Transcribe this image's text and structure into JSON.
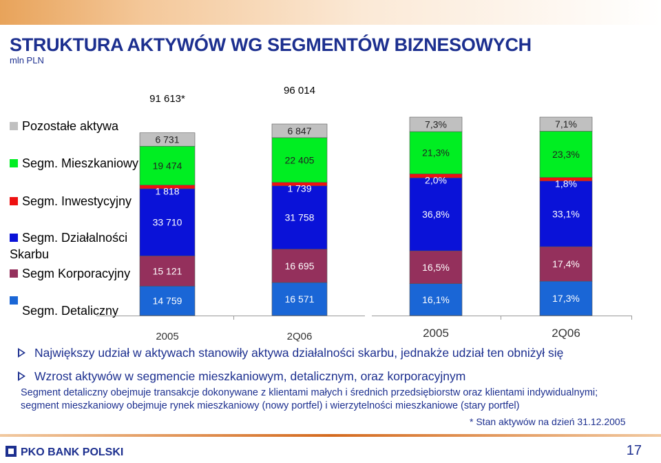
{
  "slide": {
    "title": "STRUKTURA AKTYWÓW WG SEGMENTÓW BIZNESOWYCH",
    "unit": "mln PLN",
    "footnote": "* Stan aktywów na dzień 31.12.2005",
    "brand": "PKO BANK POLSKI",
    "page": "17"
  },
  "legend": [
    {
      "label": "Pozostałe aktywa",
      "color": "#c0c0c0"
    },
    {
      "label": "Segm. Mieszkaniowy",
      "color": "#00ee22"
    },
    {
      "label": "Segm. Inwestycyjny",
      "color": "#ee1111"
    },
    {
      "label": "Segm. Działalności",
      "label2": "Skarbu",
      "color": "#0a12d8"
    },
    {
      "label": "Segm Korporacyjny",
      "color": "#94305c"
    },
    {
      "label": "Segm. Detaliczny",
      "color": "#1a66d6"
    }
  ],
  "bullets": [
    "Największy udział w aktywach stanowiły aktywa działalności skarbu, jednakże udział ten obniżył się",
    "Wzrost aktywów w segmencie mieszkaniowym, detalicznym, oraz korporacyjnym"
  ],
  "notes": [
    "Segment detaliczny obejmuje transakcje dokonywane z klientami małych i średnich przedsiębiorstw oraz klientami indywidualnymi;",
    "segment mieszkaniowy obejmuje rynek mieszkaniowy (nowy portfel) i wierzytelności mieszkaniowe (stary portfel)"
  ],
  "chart_data": [
    {
      "type": "bar",
      "stacked": true,
      "unit": "mln PLN",
      "categories": [
        "2005",
        "2Q06"
      ],
      "totals": [
        "91 613*",
        "96 014"
      ],
      "series": [
        {
          "name": "Segm. Detaliczny",
          "color": "#1a66d6",
          "values": [
            14759,
            16571
          ],
          "labels": [
            "14 759",
            "16 571"
          ]
        },
        {
          "name": "Segm Korporacyjny",
          "color": "#94305c",
          "values": [
            15121,
            16695
          ],
          "labels": [
            "15 121",
            "16 695"
          ]
        },
        {
          "name": "Segm. Działalności Skarbu",
          "color": "#0a12d8",
          "values": [
            33710,
            31758
          ],
          "labels": [
            "33 710",
            "31 758"
          ]
        },
        {
          "name": "Segm. Inwestycyjny",
          "color": "#ee1111",
          "values": [
            1818,
            1739
          ],
          "labels": [
            "1 818",
            "1 739"
          ]
        },
        {
          "name": "Segm. Mieszkaniowy",
          "color": "#00ee22",
          "values": [
            19474,
            22405
          ],
          "labels": [
            "19 474",
            "22 405"
          ]
        },
        {
          "name": "Pozostałe aktywa",
          "color": "#c0c0c0",
          "values": [
            6731,
            6847
          ],
          "labels": [
            "6 731",
            "6 847"
          ]
        }
      ]
    },
    {
      "type": "bar",
      "stacked": true,
      "percent": true,
      "categories": [
        "2005",
        "2Q06"
      ],
      "series": [
        {
          "name": "Segm. Detaliczny",
          "color": "#1a66d6",
          "values": [
            16.1,
            17.3
          ],
          "labels": [
            "16,1%",
            "17,3%"
          ]
        },
        {
          "name": "Segm Korporacyjny",
          "color": "#94305c",
          "values": [
            16.5,
            17.4
          ],
          "labels": [
            "16,5%",
            "17,4%"
          ]
        },
        {
          "name": "Segm. Działalności Skarbu",
          "color": "#0a12d8",
          "values": [
            36.8,
            33.1
          ],
          "labels": [
            "36,8%",
            "33,1%"
          ]
        },
        {
          "name": "Segm. Inwestycyjny",
          "color": "#ee1111",
          "values": [
            2.0,
            1.8
          ],
          "labels": [
            "2,0%",
            "1,8%"
          ]
        },
        {
          "name": "Segm. Mieszkaniowy",
          "color": "#00ee22",
          "values": [
            21.3,
            23.3
          ],
          "labels": [
            "21,3%",
            "23,3%"
          ]
        },
        {
          "name": "Pozostałe aktywa",
          "color": "#c0c0c0",
          "values": [
            7.3,
            7.1
          ],
          "labels": [
            "7,3%",
            "7,1%"
          ]
        }
      ]
    }
  ]
}
